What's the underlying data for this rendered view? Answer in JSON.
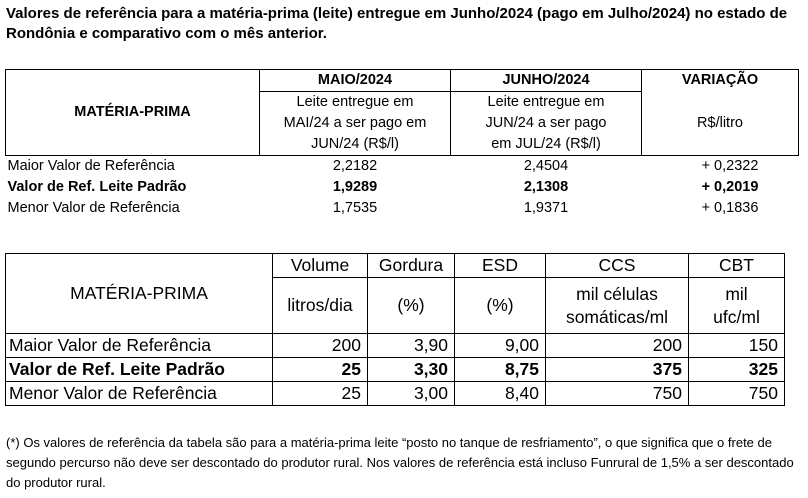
{
  "title": "Valores de referência para a matéria-prima (leite) entregue em Junho/2024 (pago em Julho/2024) no estado de Rondônia e comparativo com o mês anterior.",
  "table1": {
    "materia_prima": "MATÉRIA-PRIMA",
    "maio": "MAIO/2024",
    "junho": "JUNHO/2024",
    "variacao": "VARIAÇÃO",
    "maio_sub": [
      "Leite entregue em",
      "MAI/24 a ser pago em",
      "JUN/24 (R$/l)"
    ],
    "junho_sub": [
      "Leite entregue em",
      "JUN/24 a ser pago",
      "em JUL/24 (R$/l)"
    ],
    "variacao_sub": "R$/litro",
    "rows": [
      {
        "label": "Maior Valor de Referência",
        "maio": "2,2182",
        "junho": "2,4504",
        "variacao": "+ 0,2322",
        "bold": false
      },
      {
        "label": "Valor de Ref. Leite Padrão",
        "maio": "1,9289",
        "junho": "2,1308",
        "variacao": "+ 0,2019",
        "bold": true
      },
      {
        "label": "Menor Valor de Referência",
        "maio": "1,7535",
        "junho": "1,9371",
        "variacao": "+ 0,1836",
        "bold": false
      }
    ]
  },
  "table2": {
    "materia_prima": "MATÉRIA-PRIMA",
    "headers": [
      "Volume",
      "Gordura",
      "ESD",
      "CCS",
      "CBT"
    ],
    "units": [
      "litros/dia",
      "(%)",
      "(%)",
      "mil células somáticas/ml",
      "mil ufc/ml"
    ],
    "rows": [
      {
        "label": "Maior Valor de Referência",
        "values": [
          "200",
          "3,90",
          "9,00",
          "200",
          "150"
        ],
        "bold": false
      },
      {
        "label": "Valor de Ref. Leite Padrão",
        "values": [
          "25",
          "3,30",
          "8,75",
          "375",
          "325"
        ],
        "bold": true
      },
      {
        "label": "Menor Valor de Referência",
        "values": [
          "25",
          "3,00",
          "8,40",
          "750",
          "750"
        ],
        "bold": false
      }
    ]
  },
  "note": "(*) Os valores de referência da tabela são para a matéria-prima leite “posto no tanque de resfriamento”, o que significa que o frete de segundo percurso não deve ser descontado do produtor rural. Nos valores de referência está incluso Funrural de 1,5% a ser descontado do produtor rural."
}
